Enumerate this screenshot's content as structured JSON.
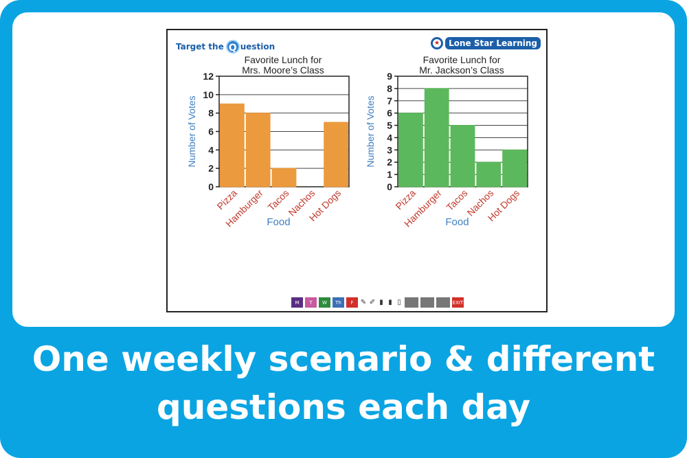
{
  "colors": {
    "frame": "#0aa4e3",
    "chart1_bar": "#ec9a3e",
    "chart2_bar": "#5cb85c",
    "axis_label": "#3f7fc1",
    "tick_label": "#c0392b"
  },
  "logos": {
    "left_prefix": "Target the",
    "left_q": "Q",
    "left_suffix": "uestion",
    "right": "Lone Star Learning"
  },
  "toolbar": {
    "days": [
      {
        "label": "M",
        "color": "#5a2d82"
      },
      {
        "label": "T",
        "color": "#c85a9e"
      },
      {
        "label": "W",
        "color": "#2e8b3d"
      },
      {
        "label": "Th",
        "color": "#3b6fb6"
      },
      {
        "label": "F",
        "color": "#d3302b"
      }
    ],
    "tools": [
      "pencil-icon",
      "brush-icon",
      "marker-icon",
      "highlighter-icon",
      "eraser-icon"
    ],
    "keys": [
      "keyboard-icon",
      "calculator-icon",
      "grid-icon"
    ],
    "exit": "EXIT"
  },
  "caption": {
    "line1": "One weekly scenario & different",
    "line2": "questions each day"
  },
  "chart_data": [
    {
      "type": "bar",
      "title": [
        "Favorite Lunch for",
        "Mrs. Moore’s Class"
      ],
      "xlabel": "Food",
      "ylabel": "Number of Votes",
      "categories": [
        "Pizza",
        "Hamburger",
        "Tacos",
        "Nachos",
        "Hot Dogs"
      ],
      "values": [
        9,
        8,
        2,
        0,
        7
      ],
      "ylim": [
        0,
        12
      ],
      "yticks": [
        0,
        2,
        4,
        6,
        8,
        10,
        12
      ],
      "grid": true,
      "color": "#ec9a3e"
    },
    {
      "type": "bar",
      "title": [
        "Favorite Lunch for",
        "Mr. Jackson’s Class"
      ],
      "xlabel": "Food",
      "ylabel": "Number of Votes",
      "categories": [
        "Pizza",
        "Hamburger",
        "Tacos",
        "Nachos",
        "Hot Dogs"
      ],
      "values": [
        6,
        8,
        5,
        2,
        3
      ],
      "ylim": [
        0,
        9
      ],
      "yticks": [
        0,
        1,
        2,
        3,
        4,
        5,
        6,
        7,
        8,
        9
      ],
      "grid": true,
      "color": "#5cb85c"
    }
  ]
}
